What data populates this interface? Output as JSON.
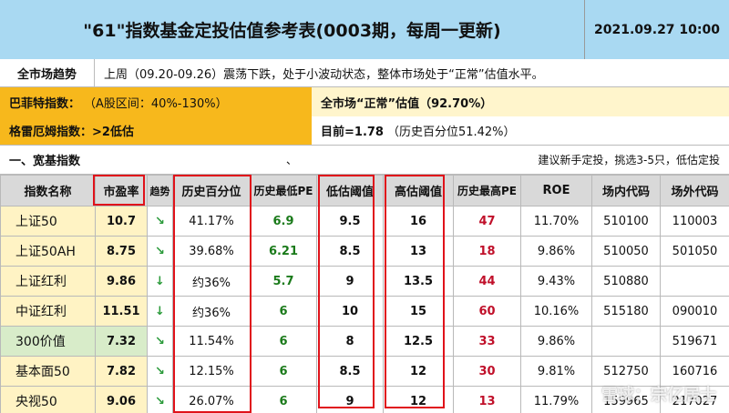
{
  "header": {
    "title": "\"61\"指数基金定投估值参考表(0003期，每周一更新)",
    "date": "2021.09.27 10:00"
  },
  "market": {
    "label": "全市场趋势",
    "text": "上周（09.20-09.26）震荡下跌，处于小波动状态，整体市场处于“正常”估值水平。"
  },
  "indicators": {
    "buffett_label": "巴菲特指数：",
    "buffett_sub": "（A股区间：40%-130%）",
    "market_valuation": "全市场“正常”估值（92.70%）",
    "graham_label": "格雷厄姆指数：>2低估",
    "graham_value": "目前=1.78",
    "graham_sub": "（历史百分位51.42%）"
  },
  "section": {
    "title": "一、宽基指数",
    "mark": "、",
    "note": "建议新手定投，挑选3-5只，低估定投"
  },
  "table": {
    "headers": [
      "指数名称",
      "市盈率",
      "趋势",
      "历史百分位",
      "历史最低PE",
      "低估阈值",
      "高估阈值",
      "历史最高PE",
      "ROE",
      "场内代码",
      "场外代码"
    ],
    "rows": [
      {
        "name": "上证50",
        "pe": "10.7",
        "trend": "↘",
        "percentile": "41.17%",
        "low_pe": "6.9",
        "low_th": "9.5",
        "high_th": "16",
        "high_pe": "47",
        "roe": "11.70%",
        "code_in": "510100",
        "code_out": "110003"
      },
      {
        "name": "上证50AH",
        "pe": "8.75",
        "trend": "↘",
        "percentile": "39.68%",
        "low_pe": "6.21",
        "low_th": "8.5",
        "high_th": "13",
        "high_pe": "18",
        "roe": "9.86%",
        "code_in": "510050",
        "code_out": "501050"
      },
      {
        "name": "上证红利",
        "pe": "9.86",
        "trend": "↓",
        "percentile": "约36%",
        "low_pe": "5.7",
        "low_th": "9",
        "high_th": "13.5",
        "high_pe": "44",
        "roe": "9.43%",
        "code_in": "510880",
        "code_out": ""
      },
      {
        "name": "中证红利",
        "pe": "11.51",
        "trend": "↓",
        "percentile": "约36%",
        "low_pe": "6",
        "low_th": "10",
        "high_th": "15",
        "high_pe": "60",
        "roe": "10.16%",
        "code_in": "515180",
        "code_out": "090010"
      },
      {
        "name": "300价值",
        "pe": "7.32",
        "trend": "↘",
        "percentile": "11.54%",
        "low_pe": "6",
        "low_th": "8",
        "high_th": "12.5",
        "high_pe": "33",
        "roe": "9.86%",
        "code_in": "",
        "code_out": "519671"
      },
      {
        "name": "基本面50",
        "pe": "7.82",
        "trend": "↘",
        "percentile": "12.15%",
        "low_pe": "6",
        "low_th": "8.5",
        "high_th": "12",
        "high_pe": "30",
        "roe": "9.81%",
        "code_in": "512750",
        "code_out": "160716"
      },
      {
        "name": "央视50",
        "pe": "9.06",
        "trend": "↘",
        "percentile": "26.07%",
        "low_pe": "6",
        "low_th": "9",
        "high_th": "12",
        "high_pe": "13",
        "roe": "11.79%",
        "code_in": "159965",
        "code_out": "217027"
      }
    ]
  },
  "watermark": "雪球：宗亿居士",
  "colors": {
    "title_bg": "#a9d9f2",
    "orange": "#f7b81c",
    "light_yellow": "#fff3c4",
    "light_green": "#d8ecc9",
    "red_box": "#e0121a"
  }
}
